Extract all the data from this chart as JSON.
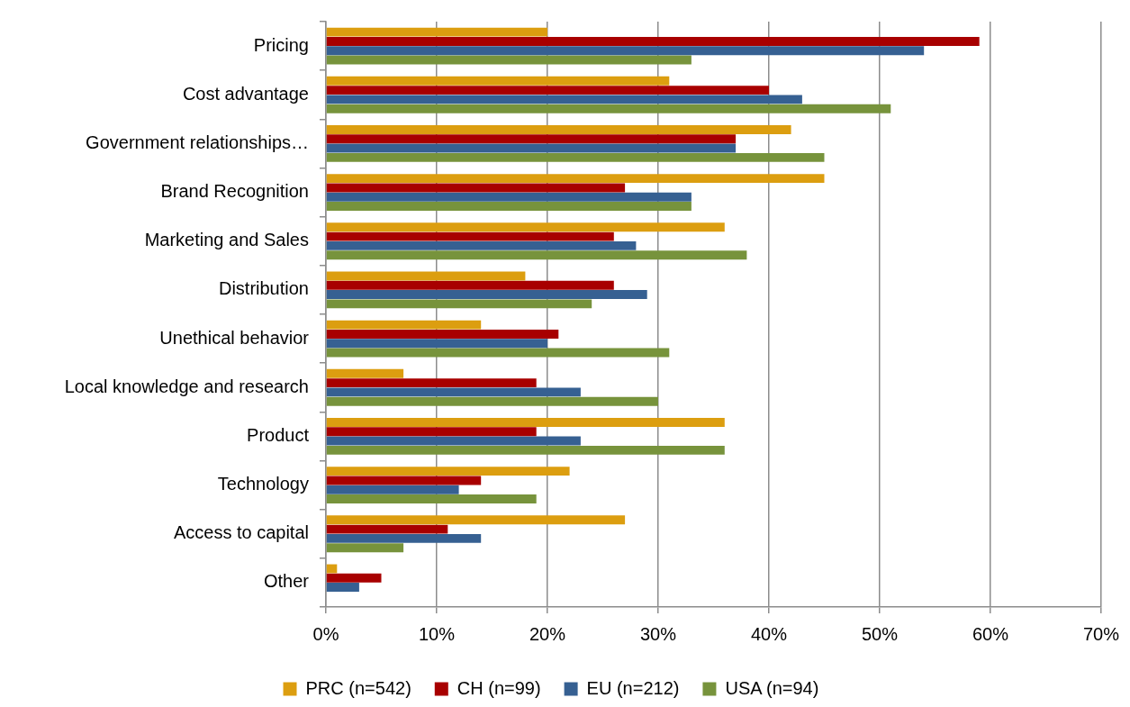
{
  "chart_data": {
    "type": "bar",
    "orientation": "horizontal",
    "categories": [
      "Pricing",
      "Cost advantage",
      "Government relationships…",
      "Brand Recognition",
      "Marketing and Sales",
      "Distribution",
      "Unethical behavior",
      "Local knowledge and research",
      "Product",
      "Technology",
      "Access to capital",
      "Other"
    ],
    "series": [
      {
        "name": "PRC (n=542)",
        "color": "#dc9e10",
        "values": [
          20,
          31,
          42,
          45,
          36,
          18,
          14,
          7,
          36,
          22,
          27,
          1
        ]
      },
      {
        "name": "CH (n=99)",
        "color": "#a80000",
        "values": [
          59,
          40,
          37,
          27,
          26,
          26,
          21,
          19,
          19,
          14,
          11,
          5
        ]
      },
      {
        "name": "EU (n=212)",
        "color": "#366092",
        "values": [
          54,
          43,
          37,
          33,
          28,
          29,
          20,
          23,
          23,
          12,
          14,
          3
        ]
      },
      {
        "name": "USA (n=94)",
        "color": "#77933c",
        "values": [
          33,
          51,
          45,
          33,
          38,
          24,
          31,
          30,
          36,
          19,
          7,
          null
        ]
      }
    ],
    "xlim": [
      0,
      70
    ],
    "xticks": [
      {
        "value": 0,
        "label": "0%"
      },
      {
        "value": 10,
        "label": "10%"
      },
      {
        "value": 20,
        "label": "20%"
      },
      {
        "value": 30,
        "label": "30%"
      },
      {
        "value": 40,
        "label": "40%"
      },
      {
        "value": 50,
        "label": "50%"
      },
      {
        "value": 60,
        "label": "60%"
      },
      {
        "value": 70,
        "label": "70%"
      }
    ],
    "grid": "x",
    "legend": "bottom"
  }
}
